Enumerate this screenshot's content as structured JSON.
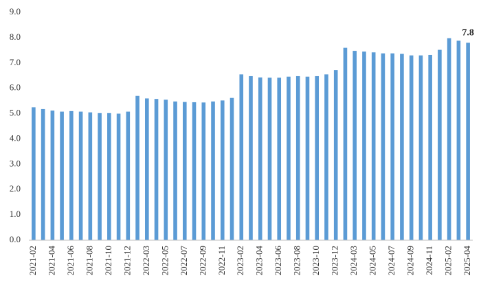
{
  "chart_data": {
    "type": "bar",
    "categories": [
      "2021-02",
      null,
      "2021-04",
      null,
      "2021-06",
      null,
      "2021-08",
      null,
      "2021-10",
      null,
      "2021-12",
      null,
      "2022-03",
      null,
      "2022-05",
      null,
      "2022-07",
      null,
      "2022-09",
      null,
      "2022-11",
      null,
      "2023-02",
      null,
      "2023-04",
      null,
      "2023-06",
      null,
      "2023-08",
      null,
      "2023-10",
      null,
      "2023-12",
      null,
      "2024-03",
      null,
      "2024-05",
      null,
      "2024-07",
      null,
      "2024-09",
      null,
      "2024-11",
      null,
      "2025-02",
      null,
      "2025-04"
    ],
    "values": [
      5.25,
      5.18,
      5.12,
      5.08,
      5.1,
      5.08,
      5.05,
      5.02,
      5.02,
      5.0,
      5.08,
      5.7,
      5.6,
      5.58,
      5.55,
      5.48,
      5.46,
      5.45,
      5.44,
      5.48,
      5.52,
      5.62,
      6.55,
      6.48,
      6.43,
      6.42,
      6.42,
      6.46,
      6.48,
      6.46,
      6.48,
      6.55,
      6.72,
      7.6,
      7.48,
      7.45,
      7.42,
      7.38,
      7.38,
      7.36,
      7.3,
      7.3,
      7.32,
      7.52,
      7.98,
      7.88,
      7.8
    ],
    "value_labels": [
      null,
      null,
      null,
      null,
      null,
      null,
      null,
      null,
      null,
      null,
      null,
      null,
      null,
      null,
      null,
      null,
      null,
      null,
      null,
      null,
      null,
      null,
      null,
      null,
      null,
      null,
      null,
      null,
      null,
      null,
      null,
      null,
      null,
      null,
      null,
      null,
      null,
      null,
      null,
      null,
      null,
      null,
      null,
      null,
      null,
      null,
      "7.8"
    ],
    "color": "#5b9bd5",
    "ylim": [
      0,
      9
    ],
    "yticks": [
      {
        "value": 0,
        "label": "0.0"
      },
      {
        "value": 1,
        "label": "1.0"
      },
      {
        "value": 2,
        "label": "2.0"
      },
      {
        "value": 3,
        "label": "3.0"
      },
      {
        "value": 4,
        "label": "4.0"
      },
      {
        "value": 5,
        "label": "5.0"
      },
      {
        "value": 6,
        "label": "6.0"
      },
      {
        "value": 7,
        "label": "7.0"
      },
      {
        "value": 8,
        "label": "8.0"
      },
      {
        "value": 9,
        "label": "9.0"
      }
    ],
    "grid": false
  }
}
